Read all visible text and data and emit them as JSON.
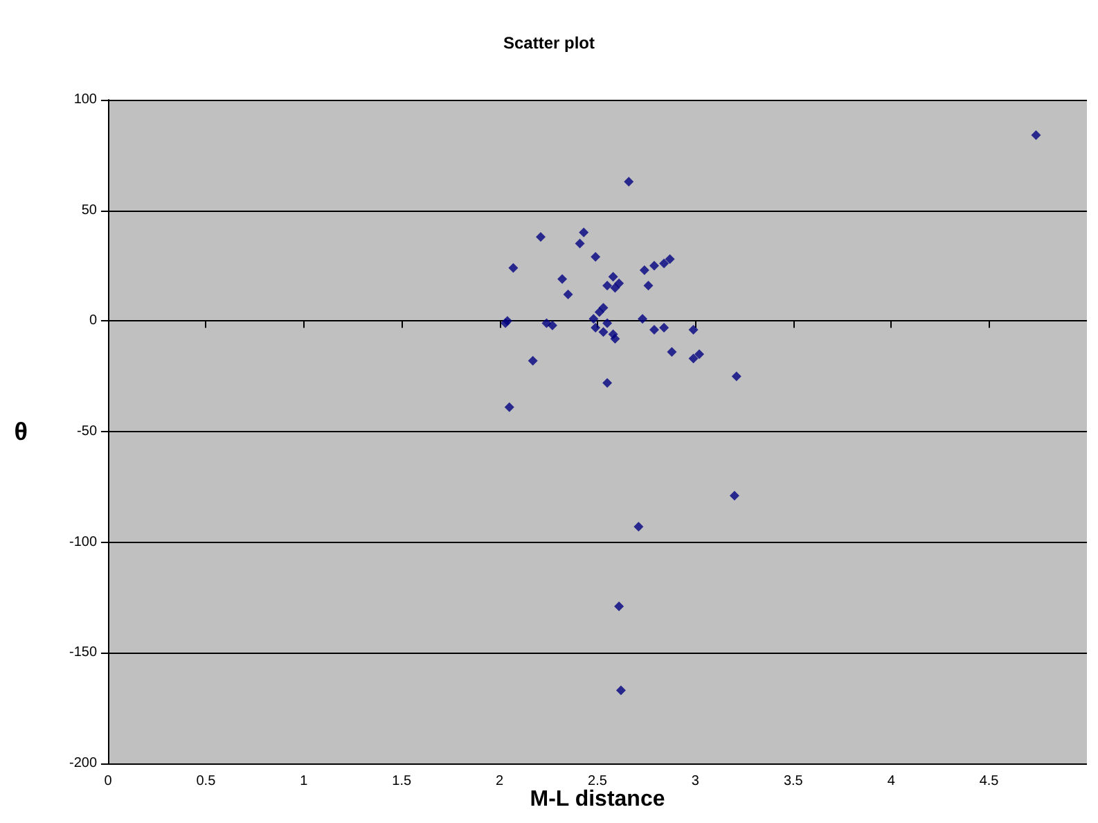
{
  "chart_data": {
    "type": "scatter",
    "title": "Scatter plot",
    "xlabel": "M-L distance",
    "ylabel": "θ",
    "x": [
      2.66,
      2.21,
      2.43,
      2.41,
      2.49,
      2.07,
      2.32,
      2.35,
      2.58,
      2.55,
      2.59,
      2.61,
      2.74,
      2.79,
      2.84,
      2.87,
      2.76,
      2.53,
      2.51,
      2.48,
      2.55,
      2.73,
      2.03,
      2.04,
      2.27,
      2.53,
      2.58,
      2.59,
      2.79,
      2.84,
      2.99,
      2.17,
      2.88,
      2.99,
      3.02,
      3.21,
      2.55,
      2.05,
      3.2,
      2.71,
      2.61,
      2.62,
      4.74,
      2.24,
      2.49
    ],
    "series": [
      {
        "color": "#000080",
        "values": [
          63,
          38,
          40,
          35,
          29,
          24,
          19,
          12,
          20,
          16,
          15,
          17,
          23,
          25,
          26,
          28,
          16,
          6,
          4,
          1,
          -1,
          1,
          -1,
          0,
          -2,
          -5,
          -6,
          -8,
          -4,
          -3,
          -4,
          -18,
          -14,
          -17,
          -15,
          -25,
          -28,
          -39,
          -79,
          -93,
          -129,
          -167,
          84,
          -1,
          -3
        ]
      }
    ],
    "xlim": [
      0,
      5
    ],
    "xticks": [
      0,
      0.5,
      1,
      1.5,
      2,
      2.5,
      3,
      3.5,
      4,
      4.5
    ],
    "ylim": [
      -200,
      100
    ],
    "yticks": [
      -200,
      -150,
      -100,
      -50,
      0,
      50,
      100
    ],
    "grid": "y",
    "marker": "diamond"
  }
}
